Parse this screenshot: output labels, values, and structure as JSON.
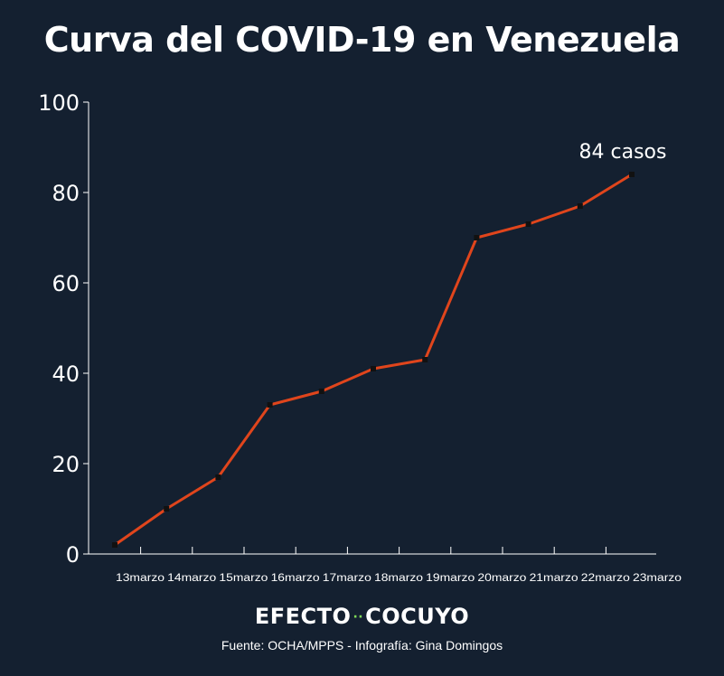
{
  "title": "Curva del COVID-19 en Venezuela",
  "brand": {
    "left": "EFECTO",
    "separator": "··",
    "right": "COCUYO"
  },
  "source": "Fuente: OCHA/MPPS - Infografía: Gina Domingos",
  "colors": {
    "background": "#142030",
    "line": "#e0451c",
    "marker": "#111111",
    "text": "#ffffff"
  },
  "chart_data": {
    "type": "line",
    "title": "Curva del COVID-19 en Venezuela",
    "categories": [
      "13marzo",
      "14marzo",
      "15marzo",
      "16marzo",
      "17marzo",
      "18marzo",
      "19marzo",
      "20marzo",
      "21marzo",
      "22marzo",
      "23marzo"
    ],
    "values": [
      2,
      10,
      17,
      33,
      36,
      41,
      43,
      70,
      73,
      77,
      84
    ],
    "yticks": [
      0,
      20,
      40,
      60,
      80,
      100
    ],
    "ylim": [
      0,
      100
    ],
    "grid": false,
    "annotation": "84 casos"
  }
}
